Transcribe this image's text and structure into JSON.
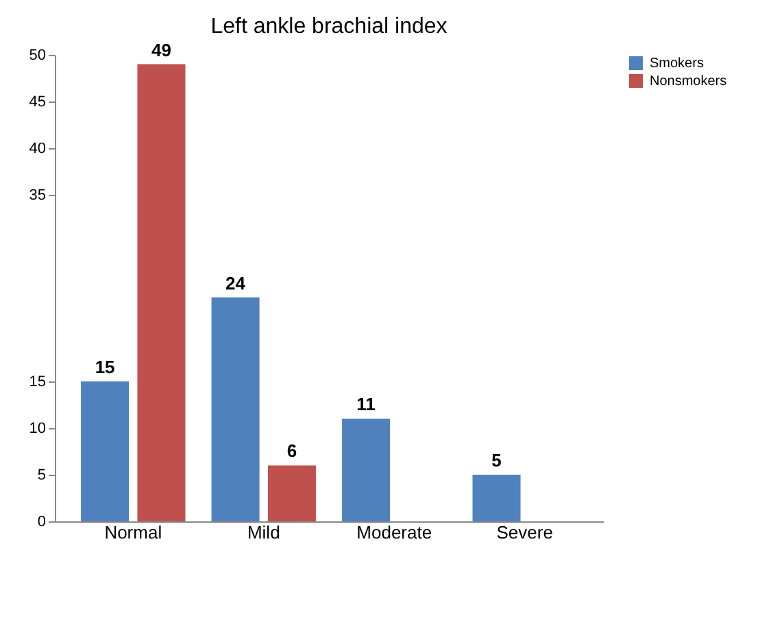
{
  "chart_data": {
    "type": "bar",
    "title": "Left ankle brachial index",
    "categories": [
      "Normal",
      "Mild",
      "Moderate",
      "Severe"
    ],
    "series": [
      {
        "name": "Smokers",
        "color": "#4f81bd",
        "values": [
          15,
          24,
          11,
          5
        ]
      },
      {
        "name": "Nonsmokers",
        "color": "#c0504d",
        "values": [
          49,
          6,
          null,
          null
        ]
      }
    ],
    "ylim": [
      0,
      50
    ],
    "yticks": [
      0,
      5,
      10,
      15,
      35,
      40,
      45,
      50
    ],
    "grid": false,
    "legend": "right",
    "data_labels": true
  }
}
